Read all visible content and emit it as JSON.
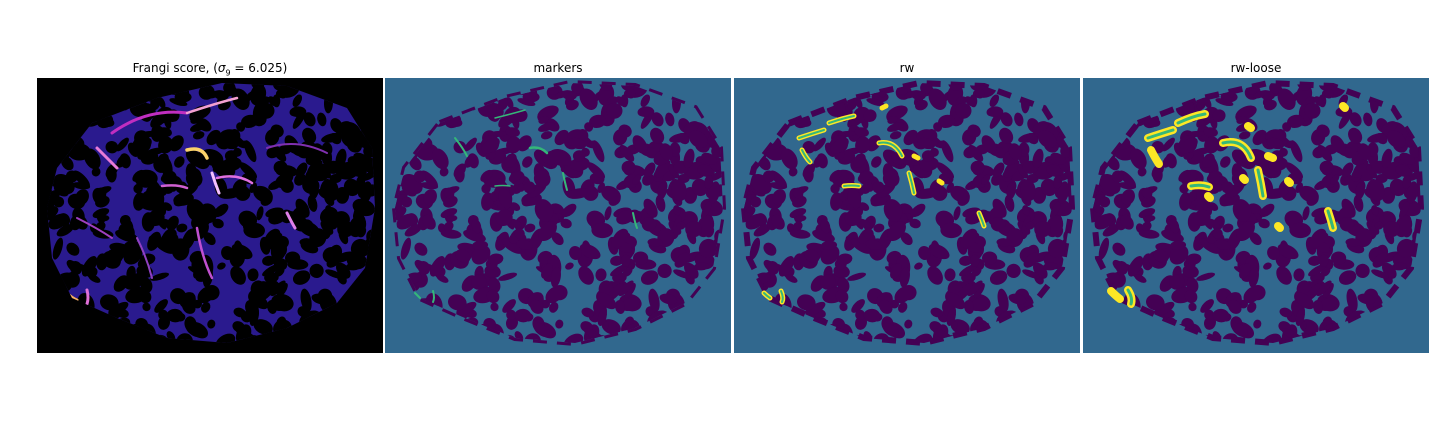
{
  "figure": {
    "panels": [
      {
        "id": "frangi",
        "title_prefix": "Frangi score, (",
        "sigma_symbol": "σ",
        "sigma_sub": "9",
        "title_suffix": " = 6.025)",
        "colormap": "magma",
        "background": "#000000"
      },
      {
        "id": "markers",
        "title": "markers",
        "colormap": "viridis",
        "background": "#31688e"
      },
      {
        "id": "rw",
        "title": "rw",
        "colormap": "viridis",
        "background": "#31688e"
      },
      {
        "id": "rw-loose",
        "title": "rw-loose",
        "colormap": "viridis",
        "background": "#31688e"
      }
    ],
    "colors": {
      "viridis_dark": "#440154",
      "viridis_mid": "#31688e",
      "viridis_green": "#35b779",
      "viridis_yellow": "#fde725",
      "magma_dark": "#2c1a7a",
      "magma_bright": "#f8a050"
    }
  }
}
